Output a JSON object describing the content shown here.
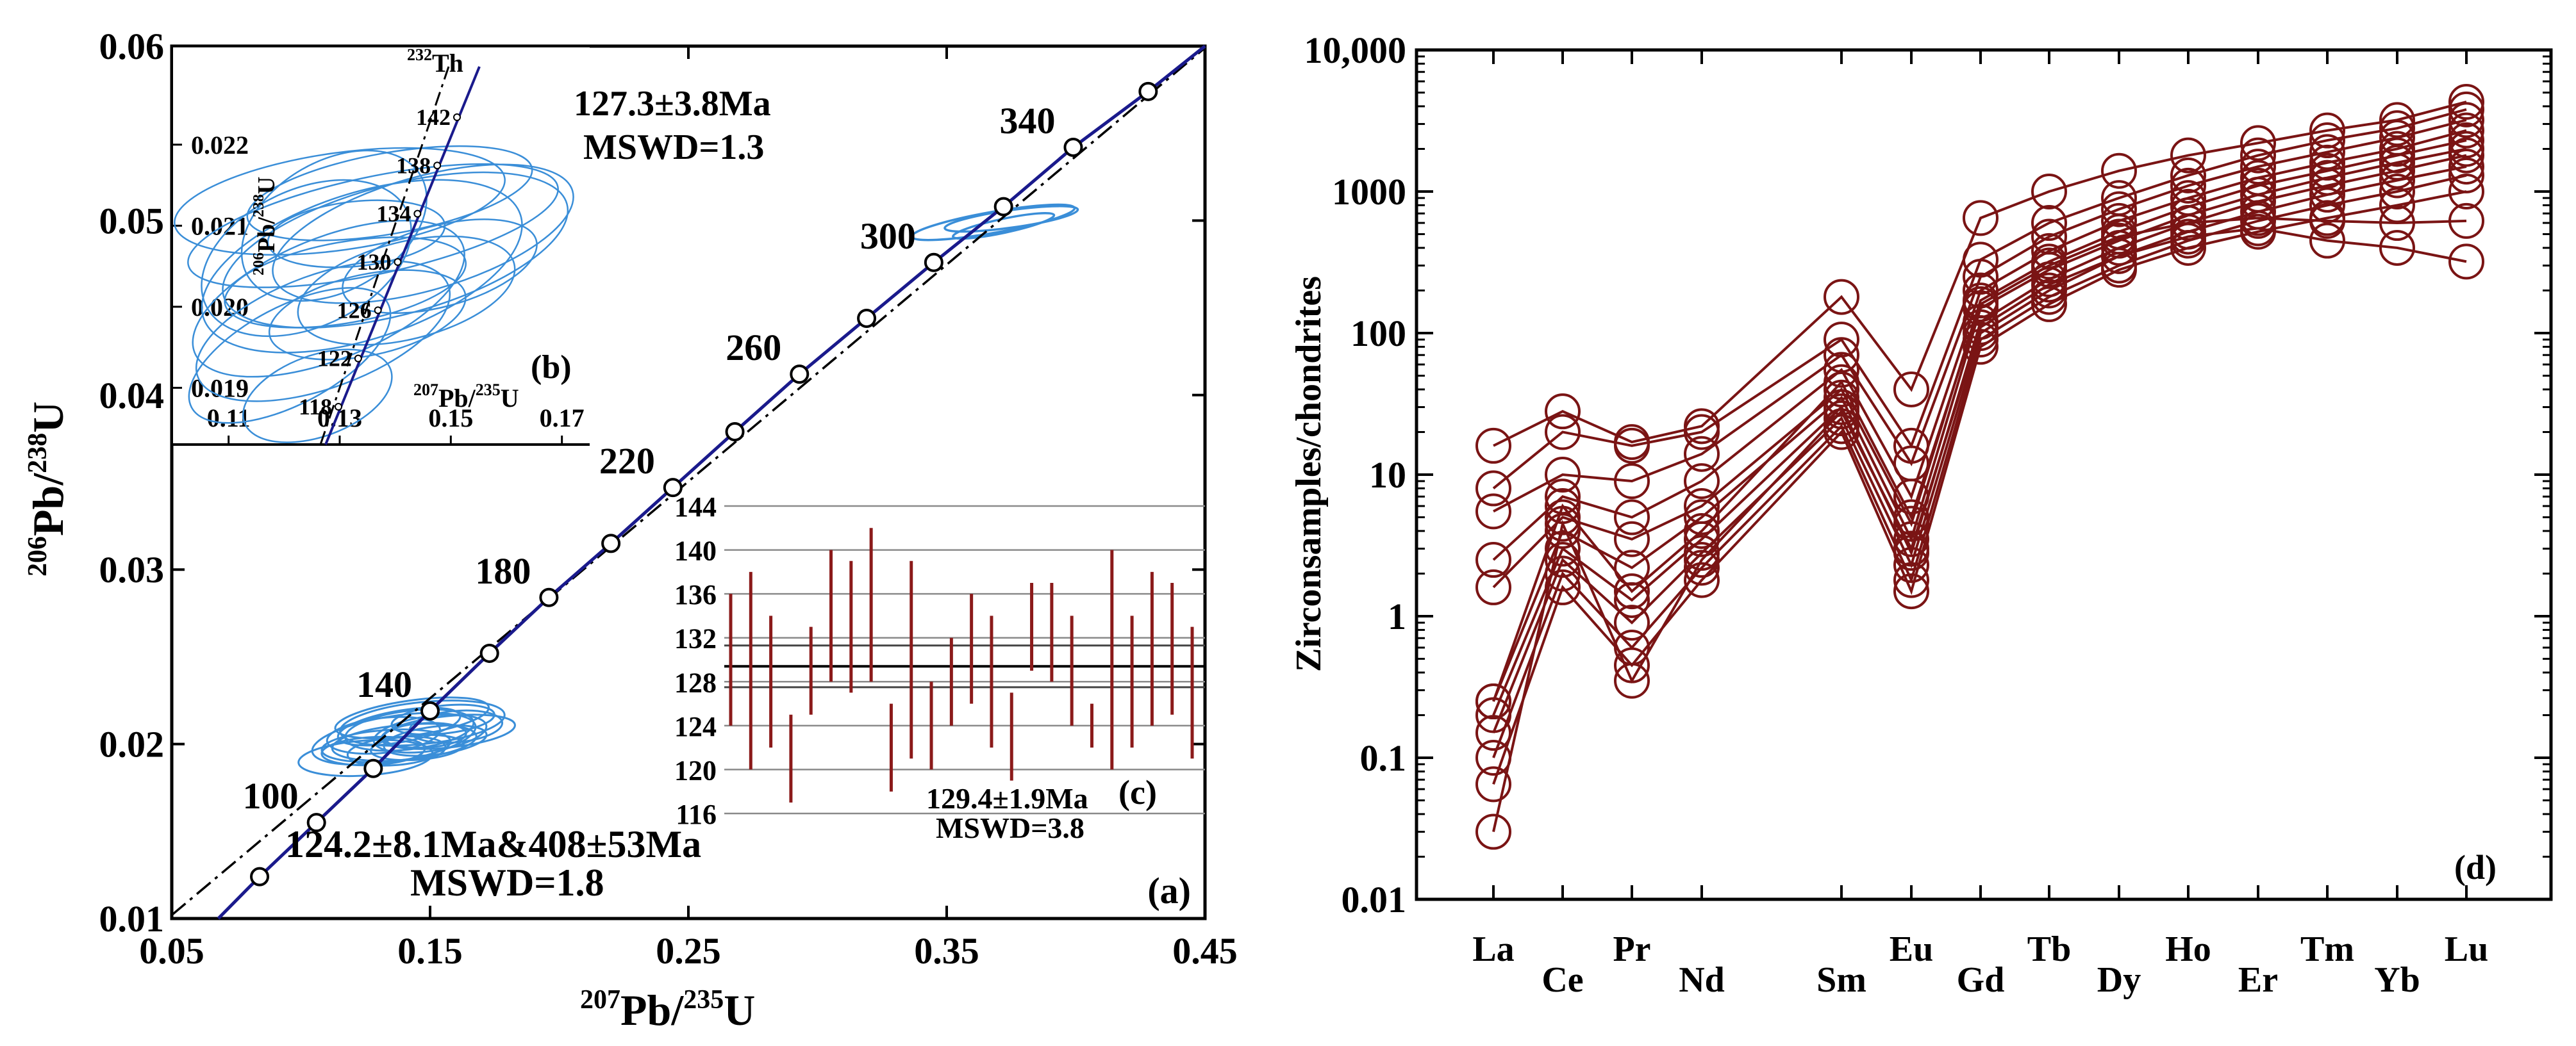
{
  "colors": {
    "concordia": "#1a1a8c",
    "ellipse": "#3a8ed8",
    "ree": "#7a1414",
    "errorbar": "#8b1a1a",
    "axis": "#000000"
  },
  "chart_data": [
    {
      "id": "a",
      "type": "scatter",
      "panel_label": "(a)",
      "xlabel_main": "Pb/",
      "xlabel_sup1": "207",
      "xlabel_sup2": "235",
      "xlabel_end": "U",
      "ylabel_main": "Pb/",
      "ylabel_sup1": "206",
      "ylabel_sup2": "238",
      "ylabel_end": "U",
      "xlim": [
        0.05,
        0.45
      ],
      "ylim": [
        0.01,
        0.06
      ],
      "x_ticks": [
        "0.05",
        "0.15",
        "0.25",
        "0.35",
        "0.45"
      ],
      "y_ticks": [
        "0.01",
        "0.02",
        "0.03",
        "0.04",
        "0.05",
        "0.06"
      ],
      "concordia_points": [
        {
          "x": 0.084,
          "y": 0.0124
        },
        {
          "x": 0.106,
          "y": 0.0155,
          "label": "100"
        },
        {
          "x": 0.128,
          "y": 0.0186
        },
        {
          "x": 0.15,
          "y": 0.0219,
          "label": "140"
        },
        {
          "x": 0.173,
          "y": 0.0252
        },
        {
          "x": 0.196,
          "y": 0.0284,
          "label": "180"
        },
        {
          "x": 0.22,
          "y": 0.0315
        },
        {
          "x": 0.244,
          "y": 0.0347,
          "label": "220"
        },
        {
          "x": 0.268,
          "y": 0.0379
        },
        {
          "x": 0.293,
          "y": 0.0412,
          "label": "260"
        },
        {
          "x": 0.319,
          "y": 0.0444
        },
        {
          "x": 0.345,
          "y": 0.0476,
          "label": "300"
        },
        {
          "x": 0.372,
          "y": 0.0508
        },
        {
          "x": 0.399,
          "y": 0.0542,
          "label": "340"
        },
        {
          "x": 0.428,
          "y": 0.0574
        }
      ],
      "discordia": {
        "x": [
          0.05,
          0.45
        ],
        "y": [
          0.0102,
          0.0599
        ]
      },
      "annotation1": "124.2±8.1Ma&408±53Ma",
      "annotation2": "MSWD=1.8"
    },
    {
      "id": "b",
      "type": "scatter",
      "panel_label": "(b)",
      "title_sup": "232",
      "title": "Th",
      "xlabel_main": "Pb/",
      "xlabel_sup1": "207",
      "xlabel_sup2": "235",
      "xlabel_end": "U",
      "ylabel_main": "Pb/",
      "ylabel_sup1": "206",
      "ylabel_sup2": "238",
      "ylabel_end": "U",
      "xlim": [
        0.1,
        0.175
      ],
      "ylim": [
        0.0183,
        0.0232
      ],
      "x_ticks": [
        "0.11",
        "0.13",
        "0.15",
        "0.17"
      ],
      "y_ticks": [
        "0.019",
        "0.020",
        "0.021",
        "0.022"
      ],
      "age_labels": [
        "118",
        "122",
        "126",
        "130",
        "134",
        "138",
        "142"
      ],
      "annotation1": "127.3±3.8Ma",
      "annotation2": "MSWD=1.3"
    },
    {
      "id": "c",
      "type": "bar",
      "panel_label": "(c)",
      "ylim": [
        116,
        144
      ],
      "y_ticks": [
        "116",
        "120",
        "124",
        "128",
        "132",
        "136",
        "140",
        "144"
      ],
      "mean": 129.4,
      "band": [
        127.5,
        131.3
      ],
      "intervals": [
        [
          124,
          136
        ],
        [
          120,
          138
        ],
        [
          122,
          134
        ],
        [
          117,
          125
        ],
        [
          125,
          133
        ],
        [
          128,
          140
        ],
        [
          127,
          139
        ],
        [
          128,
          142
        ],
        [
          118,
          126
        ],
        [
          121,
          139
        ],
        [
          120,
          128
        ],
        [
          124,
          132
        ],
        [
          126,
          136
        ],
        [
          122,
          134
        ],
        [
          119,
          127
        ],
        [
          129,
          137
        ],
        [
          128,
          137
        ],
        [
          124,
          134
        ],
        [
          122,
          126
        ],
        [
          120,
          140
        ],
        [
          122,
          134
        ],
        [
          124,
          138
        ],
        [
          125,
          137
        ],
        [
          121,
          133
        ]
      ],
      "annotation1": "129.4±1.9Ma",
      "annotation2": "MSWD=3.8"
    },
    {
      "id": "d",
      "type": "line",
      "panel_label": "(d)",
      "ylabel": "Zirconsamples/chondrites",
      "y_scale": "log",
      "ylim": [
        0.01,
        10000
      ],
      "y_ticks": [
        "0.01",
        "0.1",
        "1",
        "10",
        "100",
        "1000",
        "10,000"
      ],
      "categories": [
        "La",
        "Ce",
        "Pr",
        "Nd",
        "Sm",
        "Eu",
        "Gd",
        "Tb",
        "Dy",
        "Ho",
        "Er",
        "Tm",
        "Yb",
        "Lu"
      ],
      "series": [
        {
          "values": [
            16,
            28,
            17,
            22,
            180,
            40,
            650,
            1000,
            1400,
            1800,
            2200,
            2700,
            3200,
            4300
          ]
        },
        {
          "values": [
            8,
            20,
            16,
            20,
            90,
            16,
            330,
            600,
            900,
            1300,
            1800,
            2300,
            2800,
            3800
          ]
        },
        {
          "values": [
            5.5,
            10,
            9,
            14,
            70,
            12,
            250,
            480,
            750,
            1100,
            1500,
            1900,
            2400,
            3200
          ]
        },
        {
          "values": [
            2.5,
            7,
            5,
            9,
            55,
            7,
            200,
            380,
            620,
            900,
            1250,
            1600,
            2000,
            2700
          ]
        },
        {
          "values": [
            1.6,
            5,
            3.5,
            6,
            40,
            4.5,
            170,
            320,
            520,
            780,
            1100,
            1400,
            1800,
            2300
          ]
        },
        {
          "values": [
            0.25,
            4,
            2.2,
            5,
            35,
            3.5,
            150,
            280,
            450,
            680,
            950,
            1250,
            1600,
            2000
          ]
        },
        {
          "values": [
            0.2,
            3,
            1.3,
            3.5,
            30,
            2.8,
            120,
            240,
            400,
            600,
            850,
            1100,
            1400,
            1800
          ]
        },
        {
          "values": [
            0.15,
            2.5,
            0.9,
            2.8,
            25,
            2.3,
            100,
            200,
            350,
            520,
            720,
            950,
            1200,
            1500
          ]
        },
        {
          "values": [
            0.1,
            2,
            0.6,
            2.2,
            22,
            1.8,
            90,
            180,
            300,
            450,
            620,
            800,
            1000,
            1300
          ]
        },
        {
          "values": [
            0.065,
            1.6,
            0.45,
            1.8,
            20,
            1.5,
            80,
            160,
            280,
            400,
            520,
            650,
            800,
            1000
          ]
        },
        {
          "values": [
            0.03,
            4.5,
            0.35,
            2.5,
            28,
            3,
            110,
            220,
            350,
            480,
            550,
            450,
            400,
            320
          ]
        },
        {
          "values": [
            0.25,
            6,
            1.5,
            4,
            45,
            5,
            160,
            300,
            480,
            600,
            650,
            620,
            600,
            620
          ]
        }
      ]
    }
  ]
}
